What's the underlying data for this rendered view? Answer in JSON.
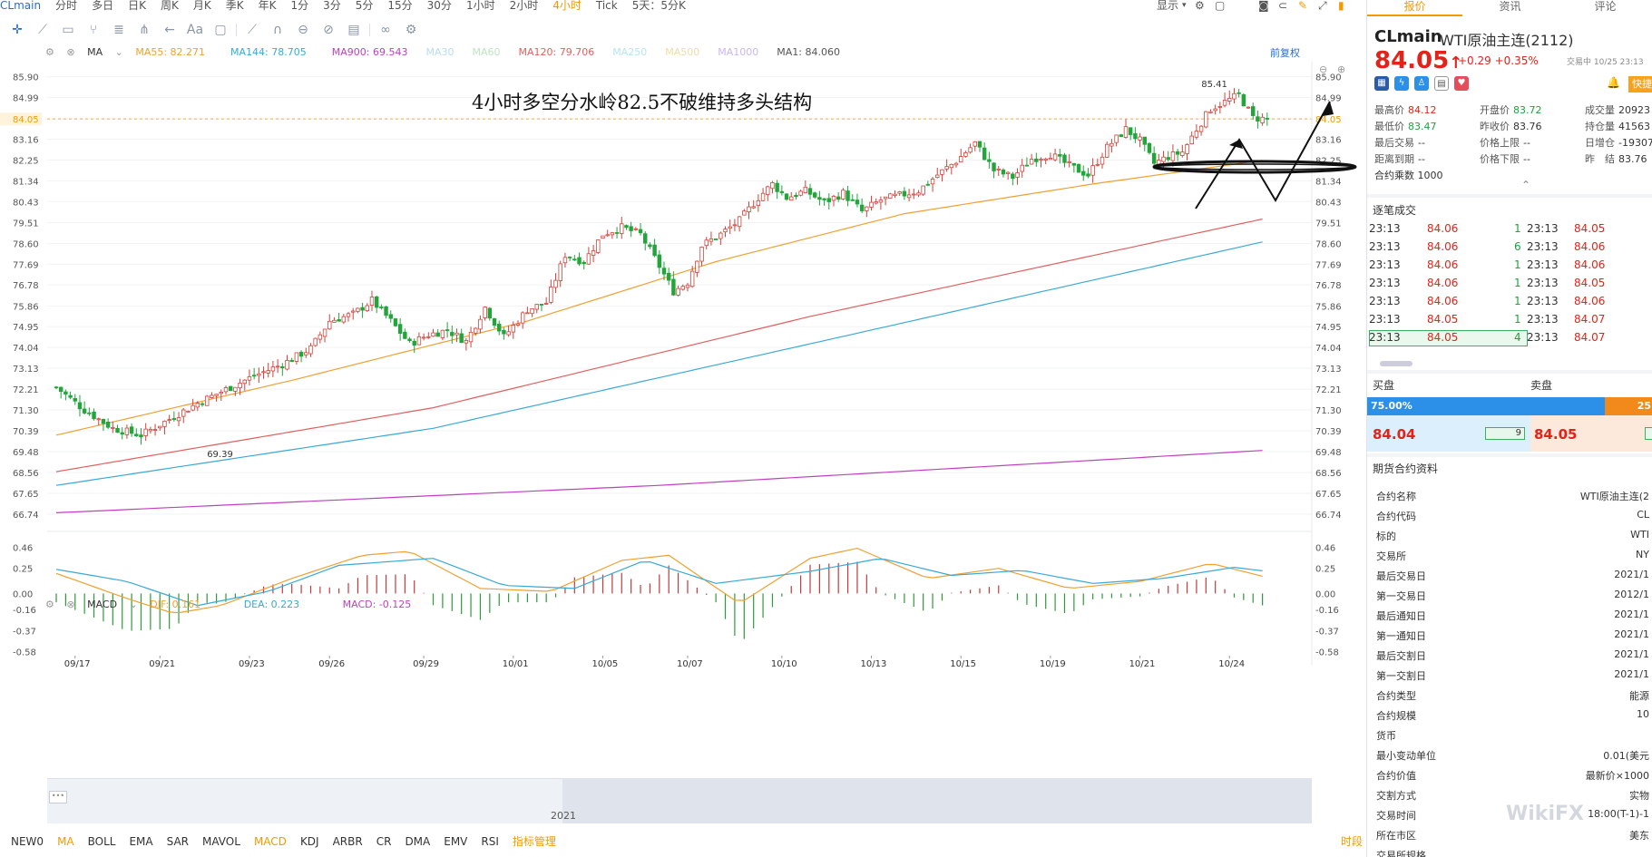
{
  "topbar": {
    "symbol": "CLmain",
    "periods": [
      "分时",
      "多日",
      "日K",
      "周K",
      "月K",
      "季K",
      "年K",
      "1分",
      "3分",
      "5分",
      "15分",
      "30分",
      "1小时",
      "2小时",
      "4小时",
      "Tick",
      "5天：5分K"
    ],
    "active_period": "4小时",
    "display_label": "显示"
  },
  "ma_legend": {
    "label": "MA",
    "items": [
      {
        "text": "MA55: 82.271",
        "color": "#f0a030"
      },
      {
        "text": "MA144: 78.705",
        "color": "#3aa9d6"
      },
      {
        "text": "MA900: 69.543",
        "color": "#c040c0"
      },
      {
        "text": "MA30",
        "color": "#b8dcef"
      },
      {
        "text": "MA60",
        "color": "#bfe3c0"
      },
      {
        "text": "MA120: 79.706",
        "color": "#e06060"
      },
      {
        "text": "MA250",
        "color": "#b8e4f2"
      },
      {
        "text": "MA500",
        "color": "#f2dca8"
      },
      {
        "text": "MA1000",
        "color": "#c9b8ef"
      },
      {
        "text": "MA1: 84.060",
        "color": "#555555"
      }
    ],
    "adjust_label": "前复权"
  },
  "annotation": "4小时多空分水岭82.5不破维持多头结构",
  "macd_legend": {
    "label": "MACD",
    "dif": "DIF: 0.161",
    "dea": "DEA: 0.223",
    "macd": "MACD: -0.125"
  },
  "chart_data": [
    {
      "type": "candlestick",
      "title": "",
      "y_ticks": [
        "85.90",
        "84.99",
        "84.05",
        "83.16",
        "82.25",
        "81.34",
        "80.43",
        "79.51",
        "78.60",
        "77.69",
        "76.78",
        "75.86",
        "74.95",
        "74.04",
        "73.13",
        "72.21",
        "71.30",
        "70.39",
        "69.48",
        "68.56",
        "67.65",
        "66.74"
      ],
      "ylim": [
        66.3,
        86.4
      ],
      "x_ticks": [
        "09/17",
        "09/21",
        "09/23",
        "09/26",
        "09/29",
        "10/01",
        "10/05",
        "10/07",
        "10/10",
        "10/13",
        "10/15",
        "10/19",
        "10/21",
        "10/24"
      ],
      "last_price_marker": "84.05",
      "high_label": "85.41",
      "low_label": "69.39",
      "close_path": [
        {
          "i": 0,
          "v": 72.3
        },
        {
          "i": 6,
          "v": 71.3
        },
        {
          "i": 12,
          "v": 70.5
        },
        {
          "i": 18,
          "v": 70.2
        },
        {
          "i": 24,
          "v": 70.9
        },
        {
          "i": 30,
          "v": 71.6
        },
        {
          "i": 36,
          "v": 72.2
        },
        {
          "i": 42,
          "v": 72.8
        },
        {
          "i": 48,
          "v": 73.3
        },
        {
          "i": 54,
          "v": 74.0
        },
        {
          "i": 58,
          "v": 75.2
        },
        {
          "i": 63,
          "v": 75.5
        },
        {
          "i": 67,
          "v": 76.1
        },
        {
          "i": 71,
          "v": 75.2
        },
        {
          "i": 75,
          "v": 74.2
        },
        {
          "i": 79,
          "v": 74.6
        },
        {
          "i": 83,
          "v": 74.8
        },
        {
          "i": 87,
          "v": 74.3
        },
        {
          "i": 91,
          "v": 75.8
        },
        {
          "i": 95,
          "v": 74.5
        },
        {
          "i": 100,
          "v": 75.7
        },
        {
          "i": 104,
          "v": 76.0
        },
        {
          "i": 108,
          "v": 78.1
        },
        {
          "i": 112,
          "v": 77.8
        },
        {
          "i": 116,
          "v": 79.0
        },
        {
          "i": 120,
          "v": 79.3
        },
        {
          "i": 124,
          "v": 79.0
        },
        {
          "i": 128,
          "v": 77.6
        },
        {
          "i": 131,
          "v": 76.5
        },
        {
          "i": 134,
          "v": 76.9
        },
        {
          "i": 137,
          "v": 78.5
        },
        {
          "i": 141,
          "v": 79.0
        },
        {
          "i": 145,
          "v": 79.6
        },
        {
          "i": 149,
          "v": 80.6
        },
        {
          "i": 152,
          "v": 81.2
        },
        {
          "i": 155,
          "v": 80.6
        },
        {
          "i": 159,
          "v": 80.9
        },
        {
          "i": 163,
          "v": 80.4
        },
        {
          "i": 167,
          "v": 80.8
        },
        {
          "i": 171,
          "v": 80.0
        },
        {
          "i": 175,
          "v": 80.5
        },
        {
          "i": 179,
          "v": 80.7
        },
        {
          "i": 183,
          "v": 80.9
        },
        {
          "i": 187,
          "v": 81.6
        },
        {
          "i": 191,
          "v": 82.2
        },
        {
          "i": 195,
          "v": 83.0
        },
        {
          "i": 199,
          "v": 81.8
        },
        {
          "i": 203,
          "v": 81.5
        },
        {
          "i": 207,
          "v": 82.3
        },
        {
          "i": 211,
          "v": 82.5
        },
        {
          "i": 215,
          "v": 82.0
        },
        {
          "i": 219,
          "v": 81.6
        },
        {
          "i": 223,
          "v": 82.8
        },
        {
          "i": 227,
          "v": 83.6
        },
        {
          "i": 230,
          "v": 83.1
        },
        {
          "i": 233,
          "v": 82.1
        },
        {
          "i": 236,
          "v": 82.4
        },
        {
          "i": 239,
          "v": 82.6
        },
        {
          "i": 242,
          "v": 83.6
        },
        {
          "i": 245,
          "v": 84.5
        },
        {
          "i": 248,
          "v": 84.8
        },
        {
          "i": 251,
          "v": 85.1
        },
        {
          "i": 254,
          "v": 84.1
        },
        {
          "i": 257,
          "v": 84.05
        }
      ],
      "series": [
        {
          "name": "MA55",
          "color": "#f0a030",
          "points": [
            {
              "i": 0,
              "v": 70.2
            },
            {
              "i": 50,
              "v": 72.6
            },
            {
              "i": 100,
              "v": 75.2
            },
            {
              "i": 140,
              "v": 77.8
            },
            {
              "i": 180,
              "v": 79.9
            },
            {
              "i": 220,
              "v": 81.2
            },
            {
              "i": 257,
              "v": 82.27
            }
          ]
        },
        {
          "name": "MA120",
          "color": "#e06060",
          "points": [
            {
              "i": 0,
              "v": 68.6
            },
            {
              "i": 80,
              "v": 71.4
            },
            {
              "i": 160,
              "v": 75.4
            },
            {
              "i": 257,
              "v": 79.71
            }
          ]
        },
        {
          "name": "MA144",
          "color": "#3aa9d6",
          "points": [
            {
              "i": 0,
              "v": 68.0
            },
            {
              "i": 80,
              "v": 70.5
            },
            {
              "i": 160,
              "v": 74.2
            },
            {
              "i": 257,
              "v": 78.71
            }
          ]
        },
        {
          "name": "MA900",
          "color": "#c040c0",
          "points": [
            {
              "i": 0,
              "v": 66.8
            },
            {
              "i": 128,
              "v": 68.0
            },
            {
              "i": 257,
              "v": 69.54
            }
          ]
        }
      ]
    },
    {
      "type": "macd",
      "y_ticks": [
        "0.46",
        "0.25",
        "0.00",
        "-0.16",
        "-0.37",
        "-0.58"
      ],
      "ylim": [
        -0.62,
        0.6
      ],
      "dif_color": "#f0a030",
      "dea_color": "#3aa9d6",
      "dif": [
        {
          "i": 0,
          "v": 0.2
        },
        {
          "i": 15,
          "v": -0.05
        },
        {
          "i": 25,
          "v": -0.2
        },
        {
          "i": 35,
          "v": -0.12
        },
        {
          "i": 50,
          "v": 0.15
        },
        {
          "i": 65,
          "v": 0.38
        },
        {
          "i": 75,
          "v": 0.42
        },
        {
          "i": 90,
          "v": 0.05
        },
        {
          "i": 105,
          "v": 0.02
        },
        {
          "i": 120,
          "v": 0.33
        },
        {
          "i": 130,
          "v": 0.38
        },
        {
          "i": 145,
          "v": -0.1
        },
        {
          "i": 160,
          "v": 0.35
        },
        {
          "i": 170,
          "v": 0.45
        },
        {
          "i": 185,
          "v": 0.15
        },
        {
          "i": 200,
          "v": 0.25
        },
        {
          "i": 215,
          "v": 0.05
        },
        {
          "i": 230,
          "v": 0.12
        },
        {
          "i": 245,
          "v": 0.3
        },
        {
          "i": 257,
          "v": 0.16
        }
      ],
      "dea": [
        {
          "i": 0,
          "v": 0.24
        },
        {
          "i": 15,
          "v": 0.12
        },
        {
          "i": 30,
          "v": -0.12
        },
        {
          "i": 45,
          "v": 0.02
        },
        {
          "i": 60,
          "v": 0.28
        },
        {
          "i": 80,
          "v": 0.35
        },
        {
          "i": 95,
          "v": 0.08
        },
        {
          "i": 110,
          "v": 0.05
        },
        {
          "i": 125,
          "v": 0.33
        },
        {
          "i": 140,
          "v": 0.1
        },
        {
          "i": 160,
          "v": 0.22
        },
        {
          "i": 175,
          "v": 0.35
        },
        {
          "i": 190,
          "v": 0.18
        },
        {
          "i": 205,
          "v": 0.23
        },
        {
          "i": 220,
          "v": 0.1
        },
        {
          "i": 235,
          "v": 0.15
        },
        {
          "i": 250,
          "v": 0.26
        },
        {
          "i": 257,
          "v": 0.22
        }
      ]
    }
  ],
  "panel": {
    "tabs": [
      "报价",
      "资讯",
      "评论"
    ],
    "active_tab": "报价",
    "symbol": "CLmain",
    "name": "WTI原油主连(2112)",
    "price": "84.05",
    "change": "+0.29",
    "change_pct": "+0.35%",
    "trade_time": "交易中 10/25 23:13",
    "quick_label": "快捷",
    "stats": [
      {
        "label": "最高价",
        "value": "84.12",
        "tone": "r"
      },
      {
        "label": "开盘价",
        "value": "83.72",
        "tone": "g"
      },
      {
        "label": "成交量",
        "value": "20923",
        "tone": "k"
      },
      {
        "label": "最低价",
        "value": "83.47",
        "tone": "g"
      },
      {
        "label": "昨收价",
        "value": "83.76",
        "tone": "k"
      },
      {
        "label": "持仓量",
        "value": "41563",
        "tone": "k"
      },
      {
        "label": "最后交易",
        "value": "--",
        "tone": "k"
      },
      {
        "label": "价格上限",
        "value": "--",
        "tone": "k"
      },
      {
        "label": "日增仓",
        "value": "-19307",
        "tone": "k"
      },
      {
        "label": "距离到期",
        "value": "--",
        "tone": "k"
      },
      {
        "label": "价格下限",
        "value": "--",
        "tone": "k"
      },
      {
        "label": "昨　结",
        "value": "83.76",
        "tone": "k"
      }
    ],
    "multiplier": "合约乘数 1000",
    "trades_title": "逐笔成交",
    "trades": [
      {
        "t1": "23:13",
        "p1": "84.06",
        "q1": "1",
        "t2": "23:13",
        "p2": "84.05"
      },
      {
        "t1": "23:13",
        "p1": "84.06",
        "q1": "6",
        "t2": "23:13",
        "p2": "84.06"
      },
      {
        "t1": "23:13",
        "p1": "84.06",
        "q1": "1",
        "t2": "23:13",
        "p2": "84.06"
      },
      {
        "t1": "23:13",
        "p1": "84.06",
        "q1": "1",
        "t2": "23:13",
        "p2": "84.05"
      },
      {
        "t1": "23:13",
        "p1": "84.06",
        "q1": "1",
        "t2": "23:13",
        "p2": "84.06"
      },
      {
        "t1": "23:13",
        "p1": "84.05",
        "q1": "1",
        "t2": "23:13",
        "p2": "84.07"
      },
      {
        "t1": "23:13",
        "p1": "84.05",
        "q1": "4",
        "t2": "23:13",
        "p2": "84.07"
      }
    ],
    "buy_label": "买盘",
    "sell_label": "卖盘",
    "buy_pct": "75.00%",
    "sell_pct": "25",
    "bid_price": "84.04",
    "bid_qty": "9",
    "ask_price": "84.05",
    "info_title": "期货合约资料",
    "info": [
      {
        "k": "合约名称",
        "v": "WTI原油主连(2"
      },
      {
        "k": "合约代码",
        "v": "CL"
      },
      {
        "k": "标的",
        "v": "WTI"
      },
      {
        "k": "交易所",
        "v": "NY"
      },
      {
        "k": "最后交易日",
        "v": "2021/1"
      },
      {
        "k": "第一交易日",
        "v": "2012/1"
      },
      {
        "k": "最后通知日",
        "v": "2021/1"
      },
      {
        "k": "第一通知日",
        "v": "2021/1"
      },
      {
        "k": "最后交割日",
        "v": "2021/1"
      },
      {
        "k": "第一交割日",
        "v": "2021/1"
      },
      {
        "k": "合约类型",
        "v": "能源"
      },
      {
        "k": "合约规模",
        "v": "10"
      },
      {
        "k": "货币",
        "v": ""
      },
      {
        "k": "最小变动单位",
        "v": "0.01(美元"
      },
      {
        "k": "合约价值",
        "v": "最新价×1000"
      },
      {
        "k": "交割方式",
        "v": "实物"
      },
      {
        "k": "交易时间",
        "v": "18:00(T-1)-1"
      },
      {
        "k": "所在市区",
        "v": "美东"
      },
      {
        "k": "交易所规格",
        "v": ""
      }
    ]
  },
  "indicators": {
    "items": [
      "NEW0",
      "MA",
      "BOLL",
      "EMA",
      "SAR",
      "MAVOL",
      "MACD",
      "KDJ",
      "ARBR",
      "CR",
      "DMA",
      "EMV",
      "RSI",
      "指标管理"
    ],
    "active": [
      "MA",
      "MACD",
      "指标管理"
    ],
    "time_switch": "时段"
  },
  "navigator": {
    "year": "2021"
  },
  "watermark": "WikiFX"
}
